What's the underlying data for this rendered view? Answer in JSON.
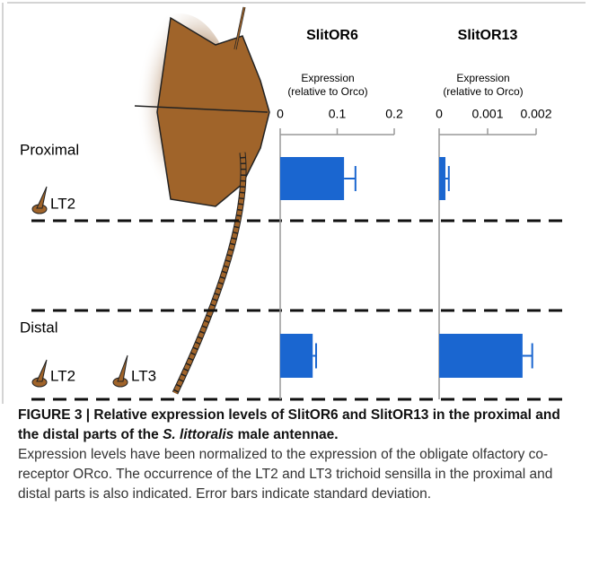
{
  "chart_data": [
    {
      "type": "hbar",
      "title": "SlitOR6",
      "xlabel": [
        "Expression",
        "(relative to Orco)"
      ],
      "categories": [
        "Proximal",
        "Distal"
      ],
      "values": [
        0.112,
        0.057
      ],
      "errors": [
        0.02,
        0.006
      ],
      "color": "#1a66d0",
      "xlim": [
        0,
        0.2
      ],
      "xticks": [
        0,
        0.1,
        0.2
      ]
    },
    {
      "type": "hbar",
      "title": "SlitOR13",
      "xlabel": [
        "Expression",
        "(relative to Orco)"
      ],
      "categories": [
        null,
        null
      ],
      "values": [
        0.00013,
        0.00172
      ],
      "errors": [
        7e-05,
        0.0002
      ],
      "color": "#1a66d0",
      "xlim": [
        0,
        0.002
      ],
      "xticks": [
        0,
        0.001,
        0.002
      ]
    }
  ],
  "sensilla": {
    "proximal": [
      "LT2"
    ],
    "distal": [
      "LT2",
      "LT3"
    ]
  },
  "caption": {
    "title": [
      "FIGURE 3 | Relative expression levels of SlitOR6 and SlitOR13 in the proximal and the distal parts of the ",
      "S. littoralis",
      " male antennae."
    ],
    "body": "Expression levels have been normalized to the expression of the obligate olfactory co-receptor ORco. The occurrence of the LT2 and LT3 trichoid sensilla in the proximal and distal parts is also indicated. Error bars indicate standard deviation."
  }
}
